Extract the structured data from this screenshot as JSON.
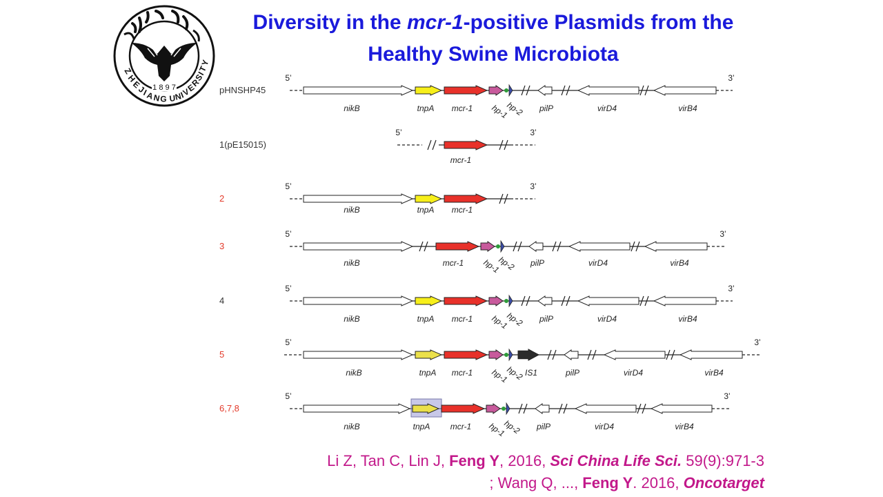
{
  "title": {
    "part1": "Diversity in the ",
    "italic": "mcr-1",
    "part2": "-positive Plasmids from the",
    "line2": "Healthy Swine Microbiota"
  },
  "logo": {
    "label": "Zhejiang University logo"
  },
  "end_labels": {
    "five": "5’",
    "three": "3’"
  },
  "colors": {
    "mcr1": "#e8312a",
    "tnpA": "#f7ef1a",
    "tnpA_variant": "#ebe04a",
    "hp1": "#c85a9c",
    "hp2": "#3b4da8",
    "dot": "#2e9c3a",
    "IS1": "#2b2b2b",
    "highlight": "#9a9ad6",
    "label_red": "#e33a2a",
    "title_blue": "#1a1adb",
    "citation_magenta": "#c2188a"
  },
  "plasmids": [
    {
      "label": "pHNSHP45",
      "label_color": "#333333",
      "genes": [
        "nikB",
        "tnpA",
        "mcr-1",
        "hp-1",
        "hp-2",
        "pilP",
        "virD4",
        "virB4"
      ]
    },
    {
      "label": "1(pE15015)",
      "label_color": "#333333",
      "genes": [
        "mcr-1"
      ]
    },
    {
      "label": "2",
      "label_color": "#e33a2a",
      "genes": [
        "nikB",
        "tnpA",
        "mcr-1"
      ]
    },
    {
      "label": "3",
      "label_color": "#e33a2a",
      "genes": [
        "nikB",
        "mcr-1",
        "hp-1",
        "hp-2",
        "pilP",
        "virD4",
        "virB4"
      ]
    },
    {
      "label": "4",
      "label_color": "#333333",
      "genes": [
        "nikB",
        "tnpA",
        "mcr-1",
        "hp-1",
        "hp-2",
        "pilP",
        "virD4",
        "virB4"
      ]
    },
    {
      "label": "5",
      "label_color": "#e33a2a",
      "genes": [
        "nikB",
        "tnpA",
        "mcr-1",
        "hp-1",
        "hp-2",
        "IS1",
        "pilP",
        "virD4",
        "virB4"
      ]
    },
    {
      "label": "6,7,8",
      "label_color": "#e33a2a",
      "genes": [
        "nikB",
        "tnpA",
        "mcr-1",
        "hp-1",
        "hp-2",
        "pilP",
        "virD4",
        "virB4"
      ]
    }
  ],
  "citation": {
    "line1": {
      "a": "Li Z, Tan C, Lin J, ",
      "b": "Feng Y",
      "c": ", 2016, ",
      "d": "Sci China Life Sci.",
      "e": " 59(9):971-3"
    },
    "line2": {
      "a": "; Wang Q, ..., ",
      "b": "Feng Y",
      "c": ". 2016, ",
      "d": "Oncotarget"
    }
  }
}
